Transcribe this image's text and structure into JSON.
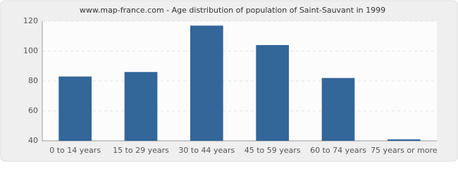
{
  "chart_data": {
    "type": "bar",
    "title": "www.map-france.com - Age distribution of population of Saint-Sauvant in 1999",
    "categories": [
      "0 to 14 years",
      "15 to 29 years",
      "30 to 44 years",
      "45 to 59 years",
      "60 to 74 years",
      "75 years or more"
    ],
    "values": [
      83,
      86,
      117,
      104,
      82,
      41
    ],
    "color": "#336699",
    "ylim": [
      40,
      120
    ],
    "yticks": [
      40,
      60,
      80,
      100,
      120
    ],
    "grid": true
  }
}
